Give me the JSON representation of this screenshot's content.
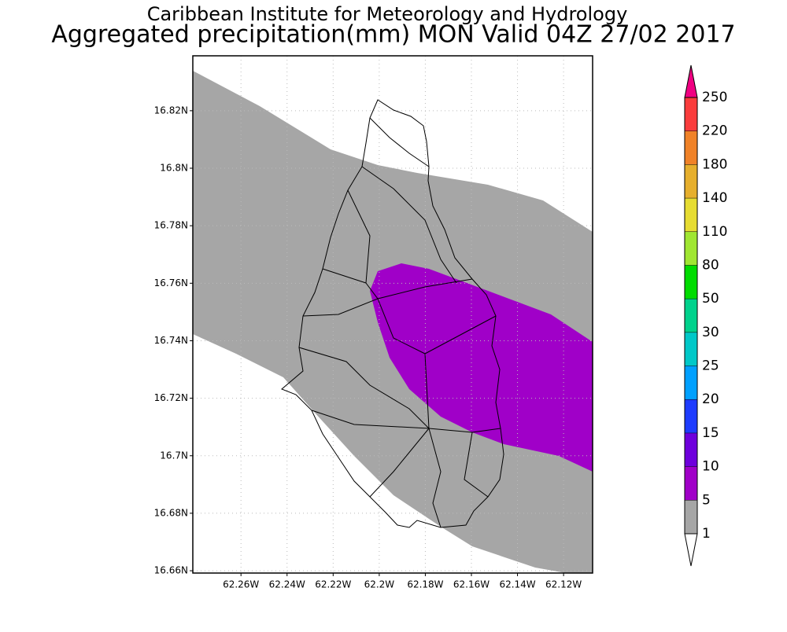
{
  "header": {
    "title": "Caribbean Institute for Meteorology and Hydrology",
    "subtitle": "Aggregated precipitation(mm) MON Valid 04Z 27/02 2017"
  },
  "map": {
    "lat_range": [
      16.6592,
      16.8391
    ],
    "lon_range": [
      -62.2809,
      -62.1074
    ],
    "lat_ticks": [
      {
        "value": 16.66,
        "label": "16.66N"
      },
      {
        "value": 16.68,
        "label": "16.68N"
      },
      {
        "value": 16.7,
        "label": "16.7N"
      },
      {
        "value": 16.72,
        "label": "16.72N"
      },
      {
        "value": 16.74,
        "label": "16.74N"
      },
      {
        "value": 16.76,
        "label": "16.76N"
      },
      {
        "value": 16.78,
        "label": "16.78N"
      },
      {
        "value": 16.8,
        "label": "16.8N"
      },
      {
        "value": 16.82,
        "label": "16.82N"
      }
    ],
    "lon_ticks": [
      {
        "value": -62.26,
        "label": "62.26W"
      },
      {
        "value": -62.24,
        "label": "62.24W"
      },
      {
        "value": -62.22,
        "label": "62.22W"
      },
      {
        "value": -62.2,
        "label": "62.2W"
      },
      {
        "value": -62.18,
        "label": "62.18W"
      },
      {
        "value": -62.16,
        "label": "62.16W"
      },
      {
        "value": -62.14,
        "label": "62.14W"
      },
      {
        "value": -62.12,
        "label": "62.12W"
      }
    ],
    "grid": true
  },
  "legend": {
    "levels": [
      1,
      5,
      10,
      15,
      20,
      25,
      30,
      50,
      80,
      110,
      140,
      180,
      220,
      250
    ],
    "colors": [
      "#ffffff",
      "#a6a6a6",
      "#a000c8",
      "#6e00dc",
      "#1e3cff",
      "#00a0ff",
      "#00c8c8",
      "#00d28c",
      "#00dc00",
      "#a0e632",
      "#e6dc32",
      "#e6af2d",
      "#f08228",
      "#fa3c3c",
      "#f00082"
    ]
  }
}
